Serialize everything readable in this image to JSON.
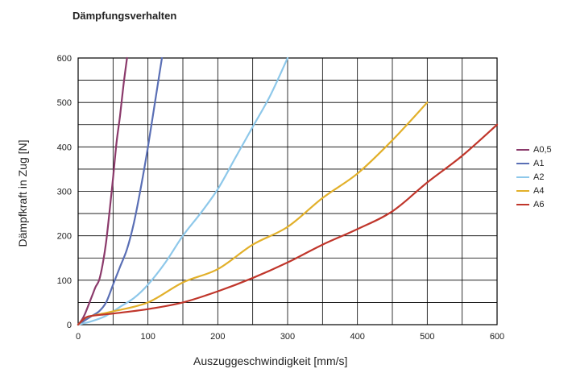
{
  "chart_data": {
    "type": "line",
    "title": "Dämpfungsverhalten",
    "xlabel": "Auszuggeschwindigkeit [mm/s]",
    "ylabel": "Dämpfkraft in Zug [N]",
    "xlim": [
      0,
      600
    ],
    "ylim": [
      0,
      600
    ],
    "xticks": [
      0,
      100,
      200,
      300,
      400,
      500,
      600
    ],
    "yticks": [
      0,
      100,
      200,
      300,
      400,
      500,
      600
    ],
    "grid": true,
    "legend_position": "right",
    "series": [
      {
        "name": "A0,5",
        "color": "#8B3A6B",
        "x": [
          0,
          5,
          10,
          20,
          25,
          30,
          35,
          40,
          45,
          50,
          55,
          60,
          65,
          70
        ],
        "y": [
          0,
          10,
          25,
          65,
          85,
          100,
          135,
          185,
          255,
          330,
          410,
          470,
          540,
          600
        ]
      },
      {
        "name": "A1",
        "color": "#5A6FB5",
        "x": [
          0,
          10,
          20,
          30,
          40,
          50,
          60,
          70,
          80,
          90,
          100,
          110,
          120
        ],
        "y": [
          0,
          10,
          20,
          30,
          50,
          90,
          130,
          170,
          230,
          310,
          400,
          500,
          600
        ]
      },
      {
        "name": "A2",
        "color": "#8EC8EA",
        "x": [
          0,
          20,
          40,
          60,
          80,
          100,
          125,
          150,
          175,
          200,
          225,
          250,
          275,
          300
        ],
        "y": [
          0,
          8,
          20,
          40,
          60,
          90,
          140,
          200,
          250,
          305,
          375,
          445,
          515,
          600
        ]
      },
      {
        "name": "A4",
        "color": "#E2B02A",
        "x": [
          0,
          10,
          20,
          50,
          100,
          150,
          200,
          250,
          300,
          350,
          400,
          450,
          500
        ],
        "y": [
          0,
          15,
          20,
          30,
          50,
          95,
          125,
          180,
          220,
          285,
          340,
          415,
          500
        ]
      },
      {
        "name": "A6",
        "color": "#C0362B",
        "x": [
          0,
          10,
          20,
          50,
          100,
          150,
          200,
          250,
          300,
          350,
          400,
          450,
          500,
          550,
          600
        ],
        "y": [
          0,
          15,
          20,
          25,
          35,
          50,
          75,
          105,
          140,
          180,
          215,
          255,
          320,
          380,
          450
        ]
      }
    ]
  }
}
